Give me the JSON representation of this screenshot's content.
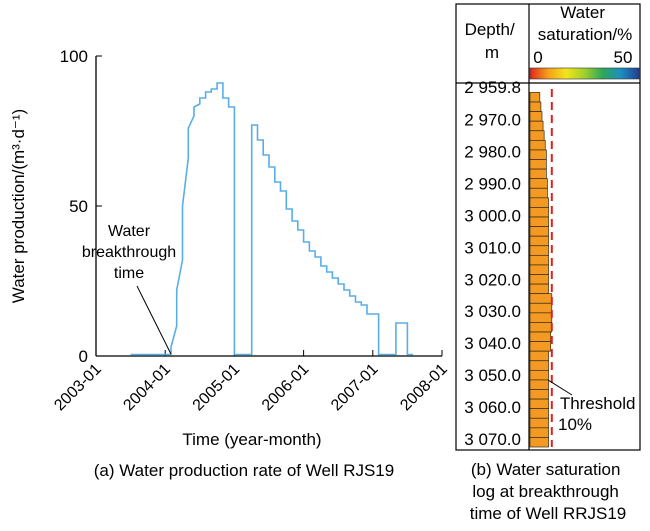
{
  "chart_data": [
    {
      "type": "line",
      "caption": "(a) Water production rate of Well RJS19",
      "ylabel": "Water production/(m³·d⁻¹)",
      "xlabel": "Time (year-month)",
      "ylim": [
        0,
        100
      ],
      "yticks": [
        "0",
        "50",
        "100"
      ],
      "xlim": [
        "2003-01",
        "2008-01"
      ],
      "xticks": [
        "2003-01",
        "2004-01",
        "2005-01",
        "2006-01",
        "2007-01",
        "2008-01"
      ],
      "grid": false,
      "line_color": "#5aaee6",
      "annotation": "Water breakthrough time",
      "annotation_at": "2004-02",
      "series": [
        {
          "name": "",
          "points": [
            [
              "2003-07",
              0.5
            ],
            [
              "2004-02",
              0.5
            ],
            [
              "2004-02",
              3
            ],
            [
              "2004-03",
              10
            ],
            [
              "2004-03",
              22
            ],
            [
              "2004-04",
              32
            ],
            [
              "2004-04",
              50
            ],
            [
              "2004-05",
              66
            ],
            [
              "2004-05",
              76
            ],
            [
              "2004-06",
              80
            ],
            [
              "2004-06",
              83
            ],
            [
              "2004-07",
              84
            ],
            [
              "2004-07",
              86
            ],
            [
              "2004-08",
              86
            ],
            [
              "2004-08",
              88
            ],
            [
              "2004-09",
              88
            ],
            [
              "2004-09",
              89
            ],
            [
              "2004-10",
              89
            ],
            [
              "2004-10",
              91
            ],
            [
              "2004-11",
              91
            ],
            [
              "2004-11",
              86
            ],
            [
              "2004-12",
              86
            ],
            [
              "2004-12",
              83
            ],
            [
              "2005-01",
              83
            ],
            [
              "2005-01",
              0.5
            ],
            [
              "2005-04",
              0.5
            ],
            [
              "2005-04",
              77
            ],
            [
              "2005-05",
              77
            ],
            [
              "2005-05",
              72
            ],
            [
              "2005-06",
              72
            ],
            [
              "2005-06",
              67
            ],
            [
              "2005-07",
              67
            ],
            [
              "2005-07",
              63
            ],
            [
              "2005-08",
              63
            ],
            [
              "2005-08",
              58
            ],
            [
              "2005-09",
              58
            ],
            [
              "2005-09",
              55
            ],
            [
              "2005-10",
              55
            ],
            [
              "2005-10",
              49
            ],
            [
              "2005-11",
              49
            ],
            [
              "2005-11",
              45
            ],
            [
              "2005-12",
              45
            ],
            [
              "2005-12",
              42
            ],
            [
              "2006-01",
              42
            ],
            [
              "2006-01",
              38
            ],
            [
              "2006-02",
              38
            ],
            [
              "2006-02",
              35
            ],
            [
              "2006-03",
              35
            ],
            [
              "2006-03",
              33
            ],
            [
              "2006-04",
              33
            ],
            [
              "2006-04",
              30
            ],
            [
              "2006-05",
              30
            ],
            [
              "2006-05",
              28
            ],
            [
              "2006-06",
              28
            ],
            [
              "2006-06",
              26
            ],
            [
              "2006-07",
              26
            ],
            [
              "2006-07",
              24
            ],
            [
              "2006-08",
              24
            ],
            [
              "2006-08",
              22
            ],
            [
              "2006-09",
              22
            ],
            [
              "2006-09",
              20
            ],
            [
              "2006-10",
              20
            ],
            [
              "2006-10",
              18
            ],
            [
              "2006-11",
              18
            ],
            [
              "2006-11",
              17
            ],
            [
              "2006-12",
              17
            ],
            [
              "2006-12",
              14
            ],
            [
              "2007-02",
              14
            ],
            [
              "2007-02",
              0.5
            ],
            [
              "2007-05",
              0.5
            ],
            [
              "2007-05",
              11
            ],
            [
              "2007-07",
              11
            ],
            [
              "2007-07",
              0.5
            ],
            [
              "2007-08",
              0.5
            ]
          ]
        }
      ]
    },
    {
      "type": "bar",
      "orientation": "horizontal",
      "caption": "(b) Water saturation log at breakthrough time of Well RRJS19",
      "depth_header": "Depth/ m",
      "value_header": "Water saturation/%",
      "scale_min_label": "0",
      "scale_max_label": "50",
      "scale_range": [
        0,
        50
      ],
      "colorbar": [
        "#e0261f",
        "#f4a11a",
        "#f3e51c",
        "#9fd02e",
        "#2fa65a",
        "#1c8fc0",
        "#213e93"
      ],
      "depth_ticks": [
        "2 959.8",
        "2 970.0",
        "2 980.0",
        "2 990.0",
        "3 000.0",
        "3 010.0",
        "3 020.0",
        "3 030.0",
        "3 040.0",
        "3 050.0",
        "3 060.0",
        "3 070.0"
      ],
      "depth_range": [
        2959.8,
        3072.5
      ],
      "bar_color": "#f39a25",
      "threshold_value": 10,
      "threshold_label": "Threshold 10%",
      "threshold_color": "#e02020",
      "depth_bins": [
        [
          2961.5,
          4
        ],
        [
          2964.5,
          4.5
        ],
        [
          2967.5,
          5
        ],
        [
          2970.5,
          5.5
        ],
        [
          2973.5,
          6
        ],
        [
          2976.5,
          6.5
        ],
        [
          2979.5,
          7
        ],
        [
          2982.5,
          7.5
        ],
        [
          2985.5,
          7.5
        ],
        [
          2988.5,
          7.5
        ],
        [
          2991.5,
          8
        ],
        [
          2994.5,
          8
        ],
        [
          2997.5,
          8.5
        ],
        [
          3000.5,
          8.5
        ],
        [
          3003.5,
          8.5
        ],
        [
          3006.5,
          8.5
        ],
        [
          3009.5,
          8.5
        ],
        [
          3012.5,
          8.5
        ],
        [
          3015.5,
          8.5
        ],
        [
          3018.5,
          8.5
        ],
        [
          3021.5,
          8.5
        ],
        [
          3024.5,
          8.5
        ],
        [
          3027.5,
          10
        ],
        [
          3030.5,
          10
        ],
        [
          3033.5,
          10
        ],
        [
          3036.5,
          10
        ],
        [
          3039.5,
          9.5
        ],
        [
          3042.5,
          9.5
        ],
        [
          3045.5,
          8.5
        ],
        [
          3048.5,
          8.5
        ],
        [
          3051.5,
          8.5
        ],
        [
          3054.5,
          8.5
        ],
        [
          3057.5,
          8.5
        ],
        [
          3060.5,
          8.5
        ],
        [
          3063.5,
          8.5
        ],
        [
          3066.5,
          8.5
        ],
        [
          3069.5,
          8.5
        ],
        [
          3072.5,
          8.5
        ]
      ]
    }
  ]
}
